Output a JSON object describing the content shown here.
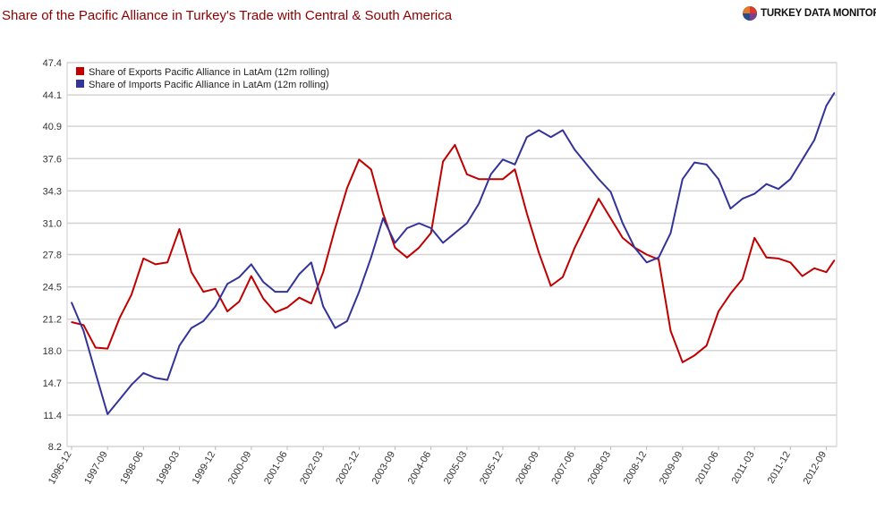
{
  "header": {
    "title": "Share of the Pacific Alliance in Turkey's Trade with Central & South America",
    "logo_text": "TURKEY DATA MONITOR"
  },
  "chart_data": {
    "type": "line",
    "title": "Share of the Pacific Alliance in Turkey's Trade with Central & South America",
    "xlabel": "",
    "ylabel": "",
    "ylim": [
      8.2,
      47.4
    ],
    "yticks": [
      "8.2",
      "11.4",
      "14.7",
      "18.0",
      "21.2",
      "24.5",
      "27.8",
      "31.0",
      "34.3",
      "37.6",
      "40.9",
      "44.1",
      "47.4"
    ],
    "xticks": [
      "1996-12",
      "1997-09",
      "1998-06",
      "1999-03",
      "1999-12",
      "2000-09",
      "2001-06",
      "2002-03",
      "2002-12",
      "2003-09",
      "2004-06",
      "2005-03",
      "2005-12",
      "2006-09",
      "2007-06",
      "2008-03",
      "2008-12",
      "2009-09",
      "2010-06",
      "2011-03",
      "2011-12",
      "2012-09"
    ],
    "grid": true,
    "legend_placement": "top-left",
    "x": [
      "1996-12",
      "1997-03",
      "1997-06",
      "1997-09",
      "1997-12",
      "1998-03",
      "1998-06",
      "1998-09",
      "1998-12",
      "1999-03",
      "1999-06",
      "1999-09",
      "1999-12",
      "2000-03",
      "2000-06",
      "2000-09",
      "2000-12",
      "2001-03",
      "2001-06",
      "2001-09",
      "2001-12",
      "2002-03",
      "2002-06",
      "2002-09",
      "2002-12",
      "2003-03",
      "2003-06",
      "2003-09",
      "2003-12",
      "2004-03",
      "2004-06",
      "2004-09",
      "2004-12",
      "2005-03",
      "2005-06",
      "2005-09",
      "2005-12",
      "2006-03",
      "2006-06",
      "2006-09",
      "2006-12",
      "2007-03",
      "2007-06",
      "2007-09",
      "2007-12",
      "2008-03",
      "2008-06",
      "2008-09",
      "2008-12",
      "2009-03",
      "2009-06",
      "2009-09",
      "2009-12",
      "2010-03",
      "2010-06",
      "2010-09",
      "2010-12",
      "2011-03",
      "2011-06",
      "2011-09",
      "2011-12",
      "2012-03",
      "2012-06",
      "2012-09",
      "2012-11"
    ],
    "series": [
      {
        "name": "Share of Exports Pacific Alliance in LatAm (12m rolling)",
        "color": "#c00000",
        "values": [
          20.9,
          20.6,
          18.3,
          18.2,
          21.3,
          23.7,
          27.4,
          26.8,
          27.0,
          30.4,
          26.0,
          24.0,
          24.3,
          22.0,
          23.0,
          25.6,
          23.3,
          21.9,
          22.4,
          23.4,
          22.8,
          26.0,
          30.5,
          34.6,
          37.5,
          36.5,
          32.0,
          28.5,
          27.5,
          28.5,
          30.0,
          37.3,
          39.0,
          36.0,
          35.5,
          35.5,
          35.5,
          36.5,
          32.0,
          28.0,
          24.6,
          25.5,
          28.5,
          31.0,
          33.5,
          31.5,
          29.5,
          28.5,
          27.8,
          27.3,
          20.0,
          16.8,
          17.5,
          18.5,
          22.0,
          23.8,
          25.3,
          29.5,
          27.5,
          27.4,
          27.0,
          25.6,
          26.4,
          26.0,
          27.2
        ]
      },
      {
        "name": "Share of Imports Pacific Alliance in LatAm (12m rolling)",
        "color": "#333399",
        "values": [
          22.9,
          20.0,
          15.7,
          11.5,
          13.0,
          14.5,
          15.7,
          15.2,
          15.0,
          18.5,
          20.3,
          21.0,
          22.5,
          24.8,
          25.5,
          26.8,
          25.0,
          24.0,
          24.0,
          25.8,
          27.0,
          22.5,
          20.3,
          21.0,
          24.0,
          27.5,
          31.5,
          29.0,
          30.5,
          31.0,
          30.5,
          29.0,
          30.0,
          31.0,
          33.0,
          36.0,
          37.5,
          37.0,
          39.8,
          40.5,
          39.8,
          40.5,
          38.5,
          37.0,
          35.5,
          34.2,
          31.0,
          28.5,
          27.0,
          27.5,
          30.0,
          35.5,
          37.2,
          37.0,
          35.5,
          32.5,
          33.5,
          34.0,
          35.0,
          34.5,
          35.5,
          37.5,
          39.5,
          43.0,
          44.3
        ]
      }
    ]
  }
}
